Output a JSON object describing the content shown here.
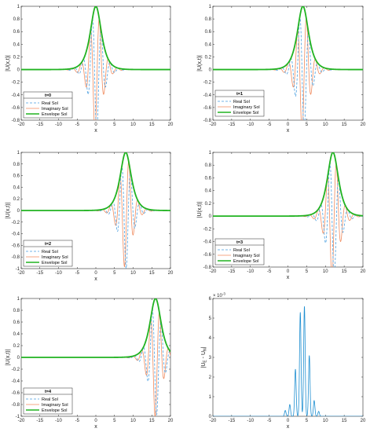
{
  "chart_data": [
    {
      "type": "line",
      "xlabel": "x",
      "ylabel": "|U(x,t)|",
      "xlim": [
        -20,
        20
      ],
      "ylim": [
        -0.8,
        1
      ],
      "xticks": [
        -20,
        -15,
        -10,
        -5,
        0,
        5,
        10,
        15,
        20
      ],
      "yticks": [
        -0.8,
        -0.6,
        -0.4,
        -0.2,
        0,
        0.2,
        0.4,
        0.6,
        0.8,
        1
      ],
      "grid": false,
      "legend_position": "bottom-left",
      "legend_title": "t=0",
      "series": [
        {
          "name": "Real Sol",
          "style": "dashed",
          "color": "#4a9fe0"
        },
        {
          "name": "Imaginary Sol",
          "style": "solid",
          "color": "#f08a5d"
        },
        {
          "name": "Envelope Sol",
          "style": "solid",
          "color": "#21b321"
        }
      ],
      "center": 0,
      "real_min": -0.8,
      "imag_min": -0.8
    },
    {
      "type": "line",
      "xlabel": "x",
      "ylabel": "|U(x,t)|",
      "xlim": [
        -20,
        20
      ],
      "ylim": [
        -0.8,
        1
      ],
      "xticks": [
        -20,
        -15,
        -10,
        -5,
        0,
        5,
        10,
        15,
        20
      ],
      "yticks": [
        -0.8,
        -0.6,
        -0.4,
        -0.2,
        0,
        0.2,
        0.4,
        0.6,
        0.8,
        1
      ],
      "grid": false,
      "legend_position": "top-left",
      "legend_title": "t=1",
      "series": [
        {
          "name": "Real Sol",
          "style": "dashed",
          "color": "#4a9fe0"
        },
        {
          "name": "Imaginary Sol",
          "style": "solid",
          "color": "#f08a5d"
        },
        {
          "name": "Envelope Sol",
          "style": "solid",
          "color": "#21b321"
        }
      ],
      "center": 4,
      "real_min": -0.6,
      "imag_min": -0.8
    },
    {
      "type": "line",
      "xlabel": "x",
      "ylabel": "|U(x,t)|",
      "xlim": [
        -20,
        20
      ],
      "ylim": [
        -1,
        1
      ],
      "xticks": [
        -20,
        -15,
        -10,
        -5,
        0,
        5,
        10,
        15,
        20
      ],
      "yticks": [
        -1,
        -0.8,
        -0.6,
        -0.4,
        -0.2,
        0,
        0.2,
        0.4,
        0.6,
        0.8,
        1
      ],
      "grid": false,
      "legend_position": "bottom-left",
      "legend_title": "t=2",
      "series": [
        {
          "name": "Real Sol",
          "style": "dashed",
          "color": "#4a9fe0"
        },
        {
          "name": "Imaginary Sol",
          "style": "solid",
          "color": "#f08a5d"
        },
        {
          "name": "Envelope Sol",
          "style": "solid",
          "color": "#21b321"
        }
      ],
      "center": 8,
      "real_min": -0.95,
      "imag_min": -0.6
    },
    {
      "type": "line",
      "xlabel": "x",
      "ylabel": "|U(x,t)|",
      "xlim": [
        -20,
        20
      ],
      "ylim": [
        -0.8,
        1
      ],
      "xticks": [
        -20,
        -15,
        -10,
        -5,
        0,
        5,
        10,
        15,
        20
      ],
      "yticks": [
        -0.8,
        -0.6,
        -0.4,
        -0.2,
        0,
        0.2,
        0.4,
        0.6,
        0.8,
        1
      ],
      "grid": false,
      "legend_position": "bottom-left",
      "legend_title": "t=3",
      "series": [
        {
          "name": "Real Sol",
          "style": "dashed",
          "color": "#4a9fe0"
        },
        {
          "name": "Imaginary Sol",
          "style": "solid",
          "color": "#f08a5d"
        },
        {
          "name": "Envelope Sol",
          "style": "solid",
          "color": "#21b321"
        }
      ],
      "center": 12,
      "real_min": -0.6,
      "imag_min": -0.75
    },
    {
      "type": "line",
      "xlabel": "x",
      "ylabel": "|U(x,t)|",
      "xlim": [
        -20,
        20
      ],
      "ylim": [
        -1,
        1
      ],
      "xticks": [
        -20,
        -15,
        -10,
        -5,
        0,
        5,
        10,
        15,
        20
      ],
      "yticks": [
        -1,
        -0.8,
        -0.6,
        -0.4,
        -0.2,
        0,
        0.2,
        0.4,
        0.6,
        0.8,
        1
      ],
      "grid": false,
      "legend_position": "bottom-left",
      "legend_title": "t=4",
      "series": [
        {
          "name": "Real Sol",
          "style": "dashed",
          "color": "#4a9fe0"
        },
        {
          "name": "Imaginary Sol",
          "style": "solid",
          "color": "#f08a5d"
        },
        {
          "name": "Envelope Sol",
          "style": "solid",
          "color": "#21b321"
        }
      ],
      "center": 16,
      "real_min": -0.7,
      "imag_min": -0.95
    },
    {
      "type": "line",
      "xlabel": "x",
      "ylabel": "|U_E - U_N|",
      "ylabel_sub": "E",
      "ylabel_sub2": "N",
      "exponent": "× 10",
      "exponent_power": "-3",
      "xlim": [
        -20,
        20
      ],
      "ylim": [
        0,
        6
      ],
      "xticks": [
        -20,
        -15,
        -10,
        -5,
        0,
        5,
        10,
        15,
        20
      ],
      "yticks": [
        0,
        1,
        2,
        3,
        4,
        5,
        6
      ],
      "grid": false,
      "series": [
        {
          "name": "error",
          "style": "solid",
          "color": "#1f8fd1"
        }
      ],
      "peaks": [
        {
          "x": -0.7,
          "y": 0.3
        },
        {
          "x": 0.5,
          "y": 0.6
        },
        {
          "x": 2.0,
          "y": 2.4
        },
        {
          "x": 3.3,
          "y": 5.3
        },
        {
          "x": 4.4,
          "y": 5.6
        },
        {
          "x": 5.7,
          "y": 3.1
        },
        {
          "x": 7.0,
          "y": 0.8
        },
        {
          "x": 8.2,
          "y": 0.25
        }
      ]
    }
  ]
}
